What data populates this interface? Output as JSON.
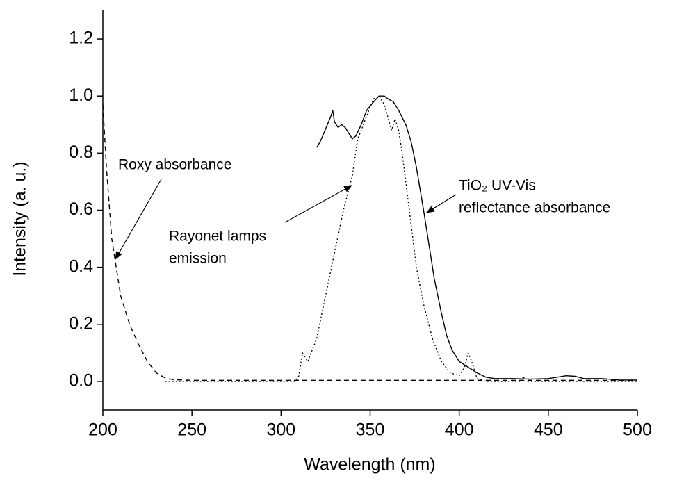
{
  "chart_data": {
    "type": "line",
    "x_label": "Wavelength (nm)",
    "y_label": "Intensity (a. u.)",
    "xlim": [
      200,
      500
    ],
    "xticks": [
      200,
      250,
      300,
      350,
      400,
      450,
      500
    ],
    "ylim": [
      -0.1,
      1.3
    ],
    "yticks": [
      {
        "value": 0,
        "label": "0.0"
      },
      {
        "value": 0.2,
        "label": "0.2"
      },
      {
        "value": 0.4,
        "label": "0.4"
      },
      {
        "value": 0.6,
        "label": "0.6"
      },
      {
        "value": 0.8,
        "label": "0.8"
      },
      {
        "value": 1.0,
        "label": "1.0"
      },
      {
        "value": 1.2,
        "label": "1.2"
      }
    ],
    "series": [
      {
        "name": "Roxy absorbance",
        "color": "#000000",
        "dash": "dashed",
        "x": [
          200,
          202,
          205,
          207,
          210,
          215,
          220,
          225,
          230,
          235,
          240,
          250,
          300,
          350,
          400,
          450,
          500
        ],
        "values": [
          0.97,
          0.75,
          0.5,
          0.42,
          0.3,
          0.2,
          0.13,
          0.07,
          0.03,
          0.012,
          0.006,
          0.004,
          0.004,
          0.004,
          0.004,
          0.004,
          0.004
        ]
      },
      {
        "name": "Rayonet lamps emission",
        "color": "#000000",
        "dash": "dotted",
        "x": [
          235,
          300,
          308,
          310,
          312,
          315,
          320,
          325,
          330,
          335,
          340,
          343,
          345,
          348,
          352,
          355,
          358,
          362,
          364,
          366,
          368,
          372,
          376,
          380,
          385,
          390,
          395,
          400,
          403,
          405,
          407,
          410,
          415,
          435,
          436,
          437,
          500
        ],
        "values": [
          0.0,
          0.0,
          0.0,
          0.02,
          0.1,
          0.07,
          0.15,
          0.3,
          0.45,
          0.6,
          0.72,
          0.85,
          0.88,
          0.93,
          0.99,
          1.0,
          0.97,
          0.88,
          0.92,
          0.88,
          0.8,
          0.6,
          0.4,
          0.27,
          0.15,
          0.07,
          0.03,
          0.02,
          0.05,
          0.1,
          0.07,
          0.01,
          0.0,
          0.0,
          0.02,
          0.0,
          0.0
        ]
      },
      {
        "name": "TiO₂ UV-Vis reflectance absorbance",
        "color": "#000000",
        "dash": "solid",
        "x": [
          320,
          322,
          324,
          326,
          328,
          329,
          330,
          332,
          334,
          336,
          338,
          340,
          342,
          345,
          348,
          352,
          355,
          358,
          360,
          363,
          366,
          370,
          373,
          376,
          380,
          383,
          386,
          390,
          393,
          396,
          400,
          405,
          410,
          415,
          420,
          430,
          440,
          450,
          455,
          460,
          465,
          470,
          480,
          490,
          500
        ],
        "values": [
          0.82,
          0.84,
          0.87,
          0.9,
          0.93,
          0.95,
          0.91,
          0.89,
          0.9,
          0.89,
          0.87,
          0.85,
          0.86,
          0.9,
          0.95,
          0.98,
          1.0,
          1.0,
          0.99,
          0.98,
          0.95,
          0.9,
          0.84,
          0.75,
          0.6,
          0.48,
          0.36,
          0.24,
          0.16,
          0.11,
          0.07,
          0.05,
          0.03,
          0.015,
          0.01,
          0.01,
          0.008,
          0.01,
          0.015,
          0.02,
          0.018,
          0.01,
          0.01,
          0.005,
          0.005
        ]
      }
    ],
    "annotations": [
      {
        "lines": [
          "Roxy absorbance"
        ]
      },
      {
        "lines": [
          "Rayonet lamps",
          "emission"
        ]
      },
      {
        "lines": [
          "TiO₂ UV-Vis",
          "reflectance absorbance"
        ]
      }
    ]
  }
}
